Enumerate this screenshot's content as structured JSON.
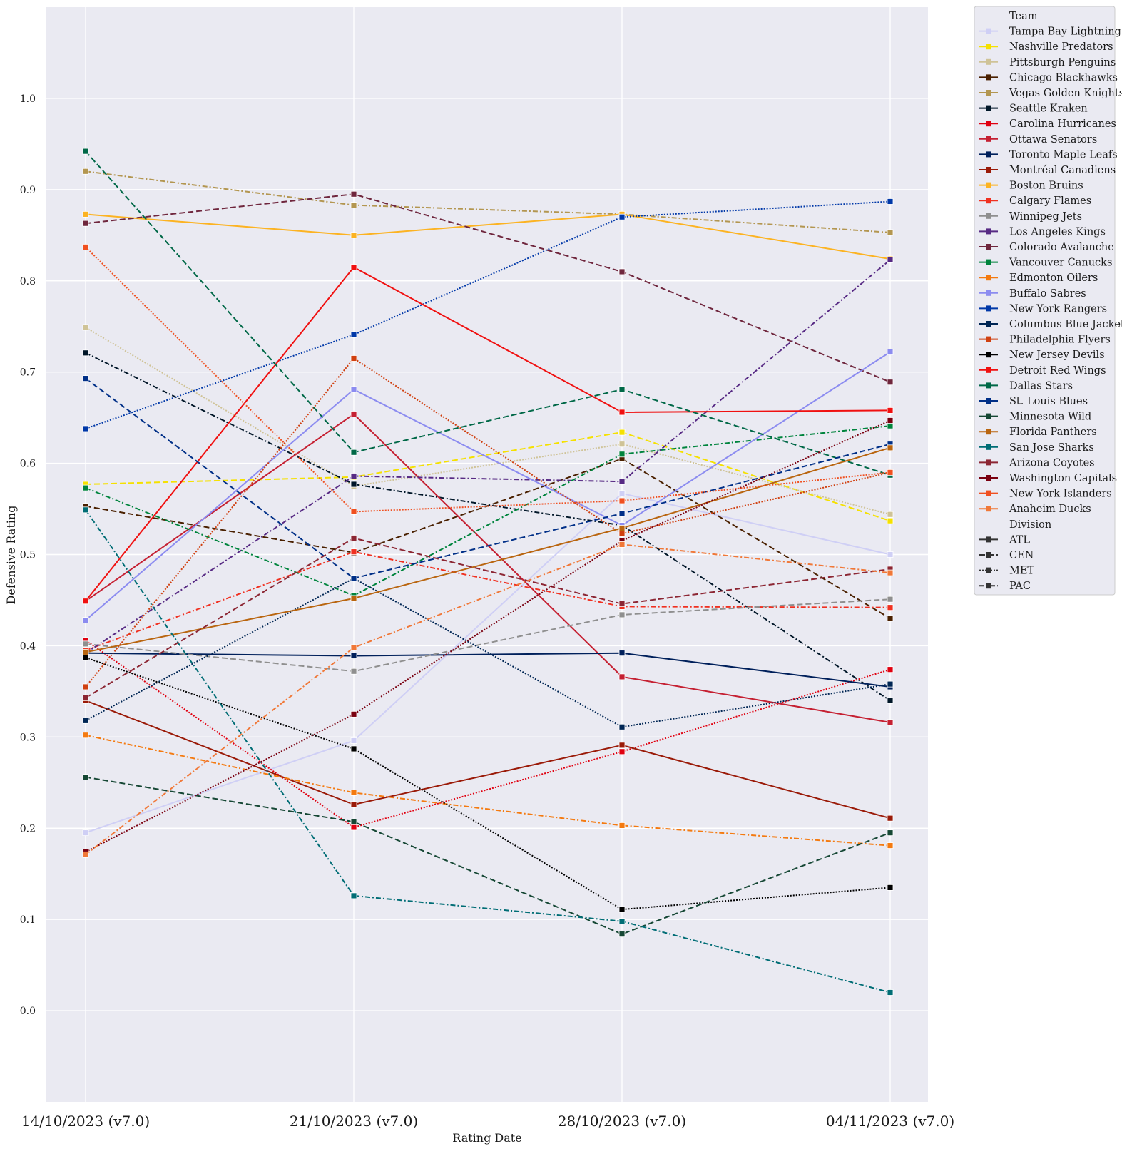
{
  "chart_data": {
    "type": "line",
    "title": "",
    "xlabel": "Rating Date",
    "ylabel": "Defensive Rating",
    "x": [
      "14/10/2023 (v7.0)",
      "21/10/2023 (v7.0)",
      "28/10/2023 (v7.0)",
      "04/11/2023 (v7.0)"
    ],
    "ylim": [
      -0.1,
      1.1
    ],
    "yticks": [
      "0.0",
      "0.1",
      "0.2",
      "0.3",
      "0.4",
      "0.5",
      "0.6",
      "0.7",
      "0.8",
      "0.9",
      "1.0"
    ],
    "grid": true,
    "background": "#eaeaf2",
    "legend_position": "outside-right",
    "legend_team_title": "Team",
    "legend_division_title": "Division",
    "divisions": [
      {
        "name": "ATL",
        "dash": "solid"
      },
      {
        "name": "CEN",
        "dash": "dashed"
      },
      {
        "name": "MET",
        "dash": "dotted"
      },
      {
        "name": "PAC",
        "dash": "dashdot"
      }
    ],
    "series": [
      {
        "name": "Tampa Bay Lightning",
        "color": "#cfcff5",
        "division": "ATL",
        "values": [
          0.195,
          0.296,
          0.567,
          0.5
        ]
      },
      {
        "name": "Nashville Predators",
        "color": "#f5e100",
        "division": "CEN",
        "values": [
          0.577,
          0.585,
          0.634,
          0.537
        ]
      },
      {
        "name": "Pittsburgh Penguins",
        "color": "#cfc397",
        "division": "MET",
        "values": [
          0.749,
          0.575,
          0.621,
          0.544
        ]
      },
      {
        "name": "Chicago Blackhawks",
        "color": "#4a2000",
        "division": "CEN",
        "values": [
          0.553,
          0.502,
          0.605,
          0.43
        ]
      },
      {
        "name": "Vegas Golden Knights",
        "color": "#b39650",
        "division": "PAC",
        "values": [
          0.92,
          0.883,
          0.873,
          0.853
        ]
      },
      {
        "name": "Seattle Kraken",
        "color": "#001628",
        "division": "PAC",
        "values": [
          0.721,
          0.577,
          0.532,
          0.34
        ]
      },
      {
        "name": "Carolina Hurricanes",
        "color": "#e00010",
        "division": "MET",
        "values": [
          0.406,
          0.201,
          0.284,
          0.374
        ]
      },
      {
        "name": "Ottawa Senators",
        "color": "#c52032",
        "division": "ATL",
        "values": [
          0.449,
          0.654,
          0.366,
          0.316
        ]
      },
      {
        "name": "Toronto Maple Leafs",
        "color": "#00205b",
        "division": "ATL",
        "values": [
          0.392,
          0.389,
          0.392,
          0.355
        ]
      },
      {
        "name": "Montréal Canadiens",
        "color": "#9a1a08",
        "division": "ATL",
        "values": [
          0.34,
          0.226,
          0.291,
          0.211
        ]
      },
      {
        "name": "Boston Bruins",
        "color": "#fcb322",
        "division": "ATL",
        "values": [
          0.873,
          0.85,
          0.873,
          0.824
        ]
      },
      {
        "name": "Calgary Flames",
        "color": "#f03020",
        "division": "PAC",
        "values": [
          0.395,
          0.503,
          0.443,
          0.442
        ]
      },
      {
        "name": "Winnipeg Jets",
        "color": "#8f8f8f",
        "division": "CEN",
        "values": [
          0.402,
          0.372,
          0.434,
          0.451
        ]
      },
      {
        "name": "Los Angeles Kings",
        "color": "#572a84",
        "division": "PAC",
        "values": [
          0.392,
          0.586,
          0.58,
          0.823
        ]
      },
      {
        "name": "Colorado Avalanche",
        "color": "#6f263d",
        "division": "CEN",
        "values": [
          0.863,
          0.895,
          0.81,
          0.689
        ]
      },
      {
        "name": "Vancouver Canucks",
        "color": "#00843d",
        "division": "PAC",
        "values": [
          0.573,
          0.455,
          0.61,
          0.641
        ]
      },
      {
        "name": "Edmonton Oilers",
        "color": "#f47a10",
        "division": "PAC",
        "values": [
          0.302,
          0.239,
          0.203,
          0.181
        ]
      },
      {
        "name": "Buffalo Sabres",
        "color": "#8c8cf0",
        "division": "ATL",
        "values": [
          0.428,
          0.681,
          0.532,
          0.722
        ]
      },
      {
        "name": "New York Rangers",
        "color": "#0038a8",
        "division": "MET",
        "values": [
          0.638,
          0.741,
          0.87,
          0.887
        ]
      },
      {
        "name": "Columbus Blue Jackets",
        "color": "#002654",
        "division": "MET",
        "values": [
          0.318,
          0.474,
          0.311,
          0.358
        ]
      },
      {
        "name": "Philadelphia Flyers",
        "color": "#d04010",
        "division": "MET",
        "values": [
          0.355,
          0.715,
          0.523,
          0.59
        ]
      },
      {
        "name": "New Jersey Devils",
        "color": "#000000",
        "division": "MET",
        "values": [
          0.387,
          0.287,
          0.111,
          0.135
        ]
      },
      {
        "name": "Detroit Red Wings",
        "color": "#f01010",
        "division": "ATL",
        "values": [
          0.449,
          0.815,
          0.656,
          0.658
        ]
      },
      {
        "name": "Dallas Stars",
        "color": "#006847",
        "division": "CEN",
        "values": [
          0.942,
          0.612,
          0.681,
          0.587
        ]
      },
      {
        "name": "St. Louis Blues",
        "color": "#002f87",
        "division": "CEN",
        "values": [
          0.693,
          0.474,
          0.545,
          0.621
        ]
      },
      {
        "name": "Minnesota Wild",
        "color": "#154734",
        "division": "CEN",
        "values": [
          0.256,
          0.207,
          0.084,
          0.195
        ]
      },
      {
        "name": "Florida Panthers",
        "color": "#b9650f",
        "division": "ATL",
        "values": [
          0.393,
          0.452,
          0.529,
          0.617
        ]
      },
      {
        "name": "San Jose Sharks",
        "color": "#006d75",
        "division": "PAC",
        "values": [
          0.549,
          0.126,
          0.098,
          0.02
        ]
      },
      {
        "name": "Arizona Coyotes",
        "color": "#8c2633",
        "division": "CEN",
        "values": [
          0.343,
          0.518,
          0.446,
          0.484
        ]
      },
      {
        "name": "Washington Capitals",
        "color": "#7a0010",
        "division": "MET",
        "values": [
          0.174,
          0.325,
          0.515,
          0.647
        ]
      },
      {
        "name": "New York Islanders",
        "color": "#f05020",
        "division": "MET",
        "values": [
          0.837,
          0.547,
          0.559,
          0.59
        ]
      },
      {
        "name": "Anaheim Ducks",
        "color": "#f07838",
        "division": "PAC",
        "values": [
          0.171,
          0.398,
          0.511,
          0.48
        ]
      }
    ]
  }
}
